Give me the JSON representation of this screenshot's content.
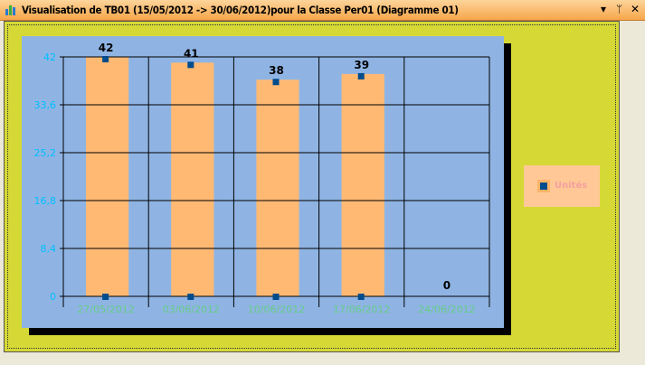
{
  "window": {
    "title": "Visualisation de TB01 (15/05/2012 -> 30/06/2012)pour la Classe Per01 (Diagramme 01)",
    "controls": [
      "▾",
      "⊥",
      "✕"
    ]
  },
  "colors": {
    "bar": "#ffb973",
    "panel": "#8fb4e3",
    "background": "#d6d935",
    "marker": "#004c8c",
    "ytick": "#00bfff",
    "xtick": "#66cc88"
  },
  "chart_data": {
    "type": "bar",
    "categories": [
      "27/05/2012",
      "03/06/2012",
      "10/06/2012",
      "17/06/2012",
      "24/06/2012"
    ],
    "series": [
      {
        "name": "Unités",
        "values": [
          42,
          41,
          38,
          39,
          0
        ]
      }
    ],
    "data_labels": [
      "42",
      "41",
      "38",
      "39",
      "0"
    ],
    "yticks": [
      "0",
      "8,4",
      "16,8",
      "25,2",
      "33,6",
      "42"
    ],
    "ylim": [
      0,
      42
    ],
    "grid": true,
    "legend": "right"
  },
  "legend": {
    "label": "Unités"
  }
}
